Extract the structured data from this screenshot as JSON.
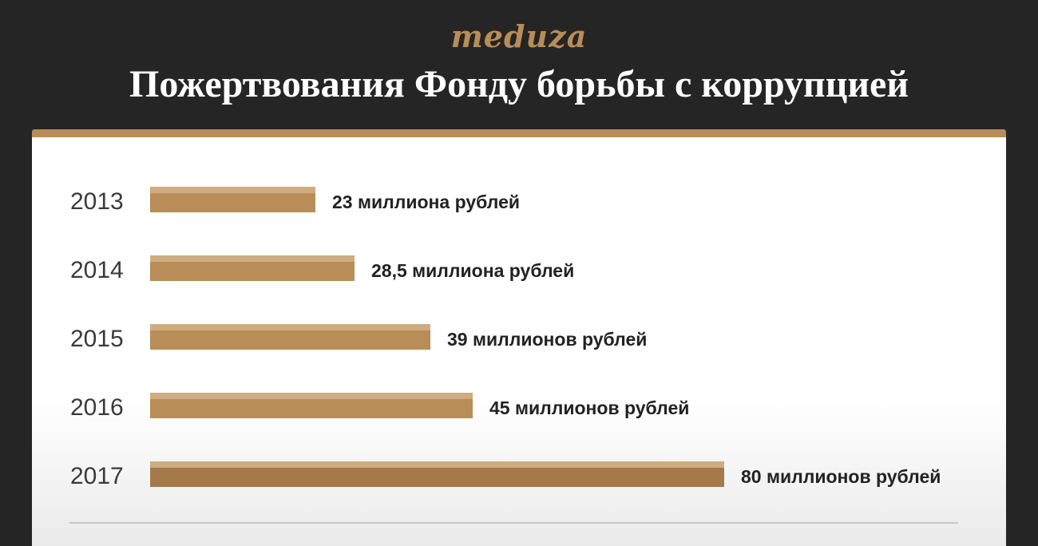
{
  "header": {
    "logo": "meduza",
    "title": "Пожертвования Фонду борьбы с коррупцией"
  },
  "colors": {
    "background": "#252525",
    "accent": "#b88d58",
    "bar_top": "#cfac7f",
    "bar_main": "#b88d58",
    "bar_highlight_main": "#a47a4b"
  },
  "chart_data": {
    "type": "bar",
    "orientation": "horizontal",
    "categories": [
      "2013",
      "2014",
      "2015",
      "2016",
      "2017"
    ],
    "values": [
      23,
      28.5,
      39,
      45,
      80
    ],
    "value_labels": [
      "23 миллиона рублей",
      "28,5 миллиона рублей",
      "39 миллионов рублей",
      "45 миллионов рублей",
      "80 миллионов рублей"
    ],
    "unit": "миллионов рублей",
    "title": "Пожертвования Фонду борьбы с коррупцией",
    "xlabel": "",
    "ylabel": "",
    "xlim": [
      0,
      80
    ],
    "grid": false,
    "legend": "none"
  }
}
